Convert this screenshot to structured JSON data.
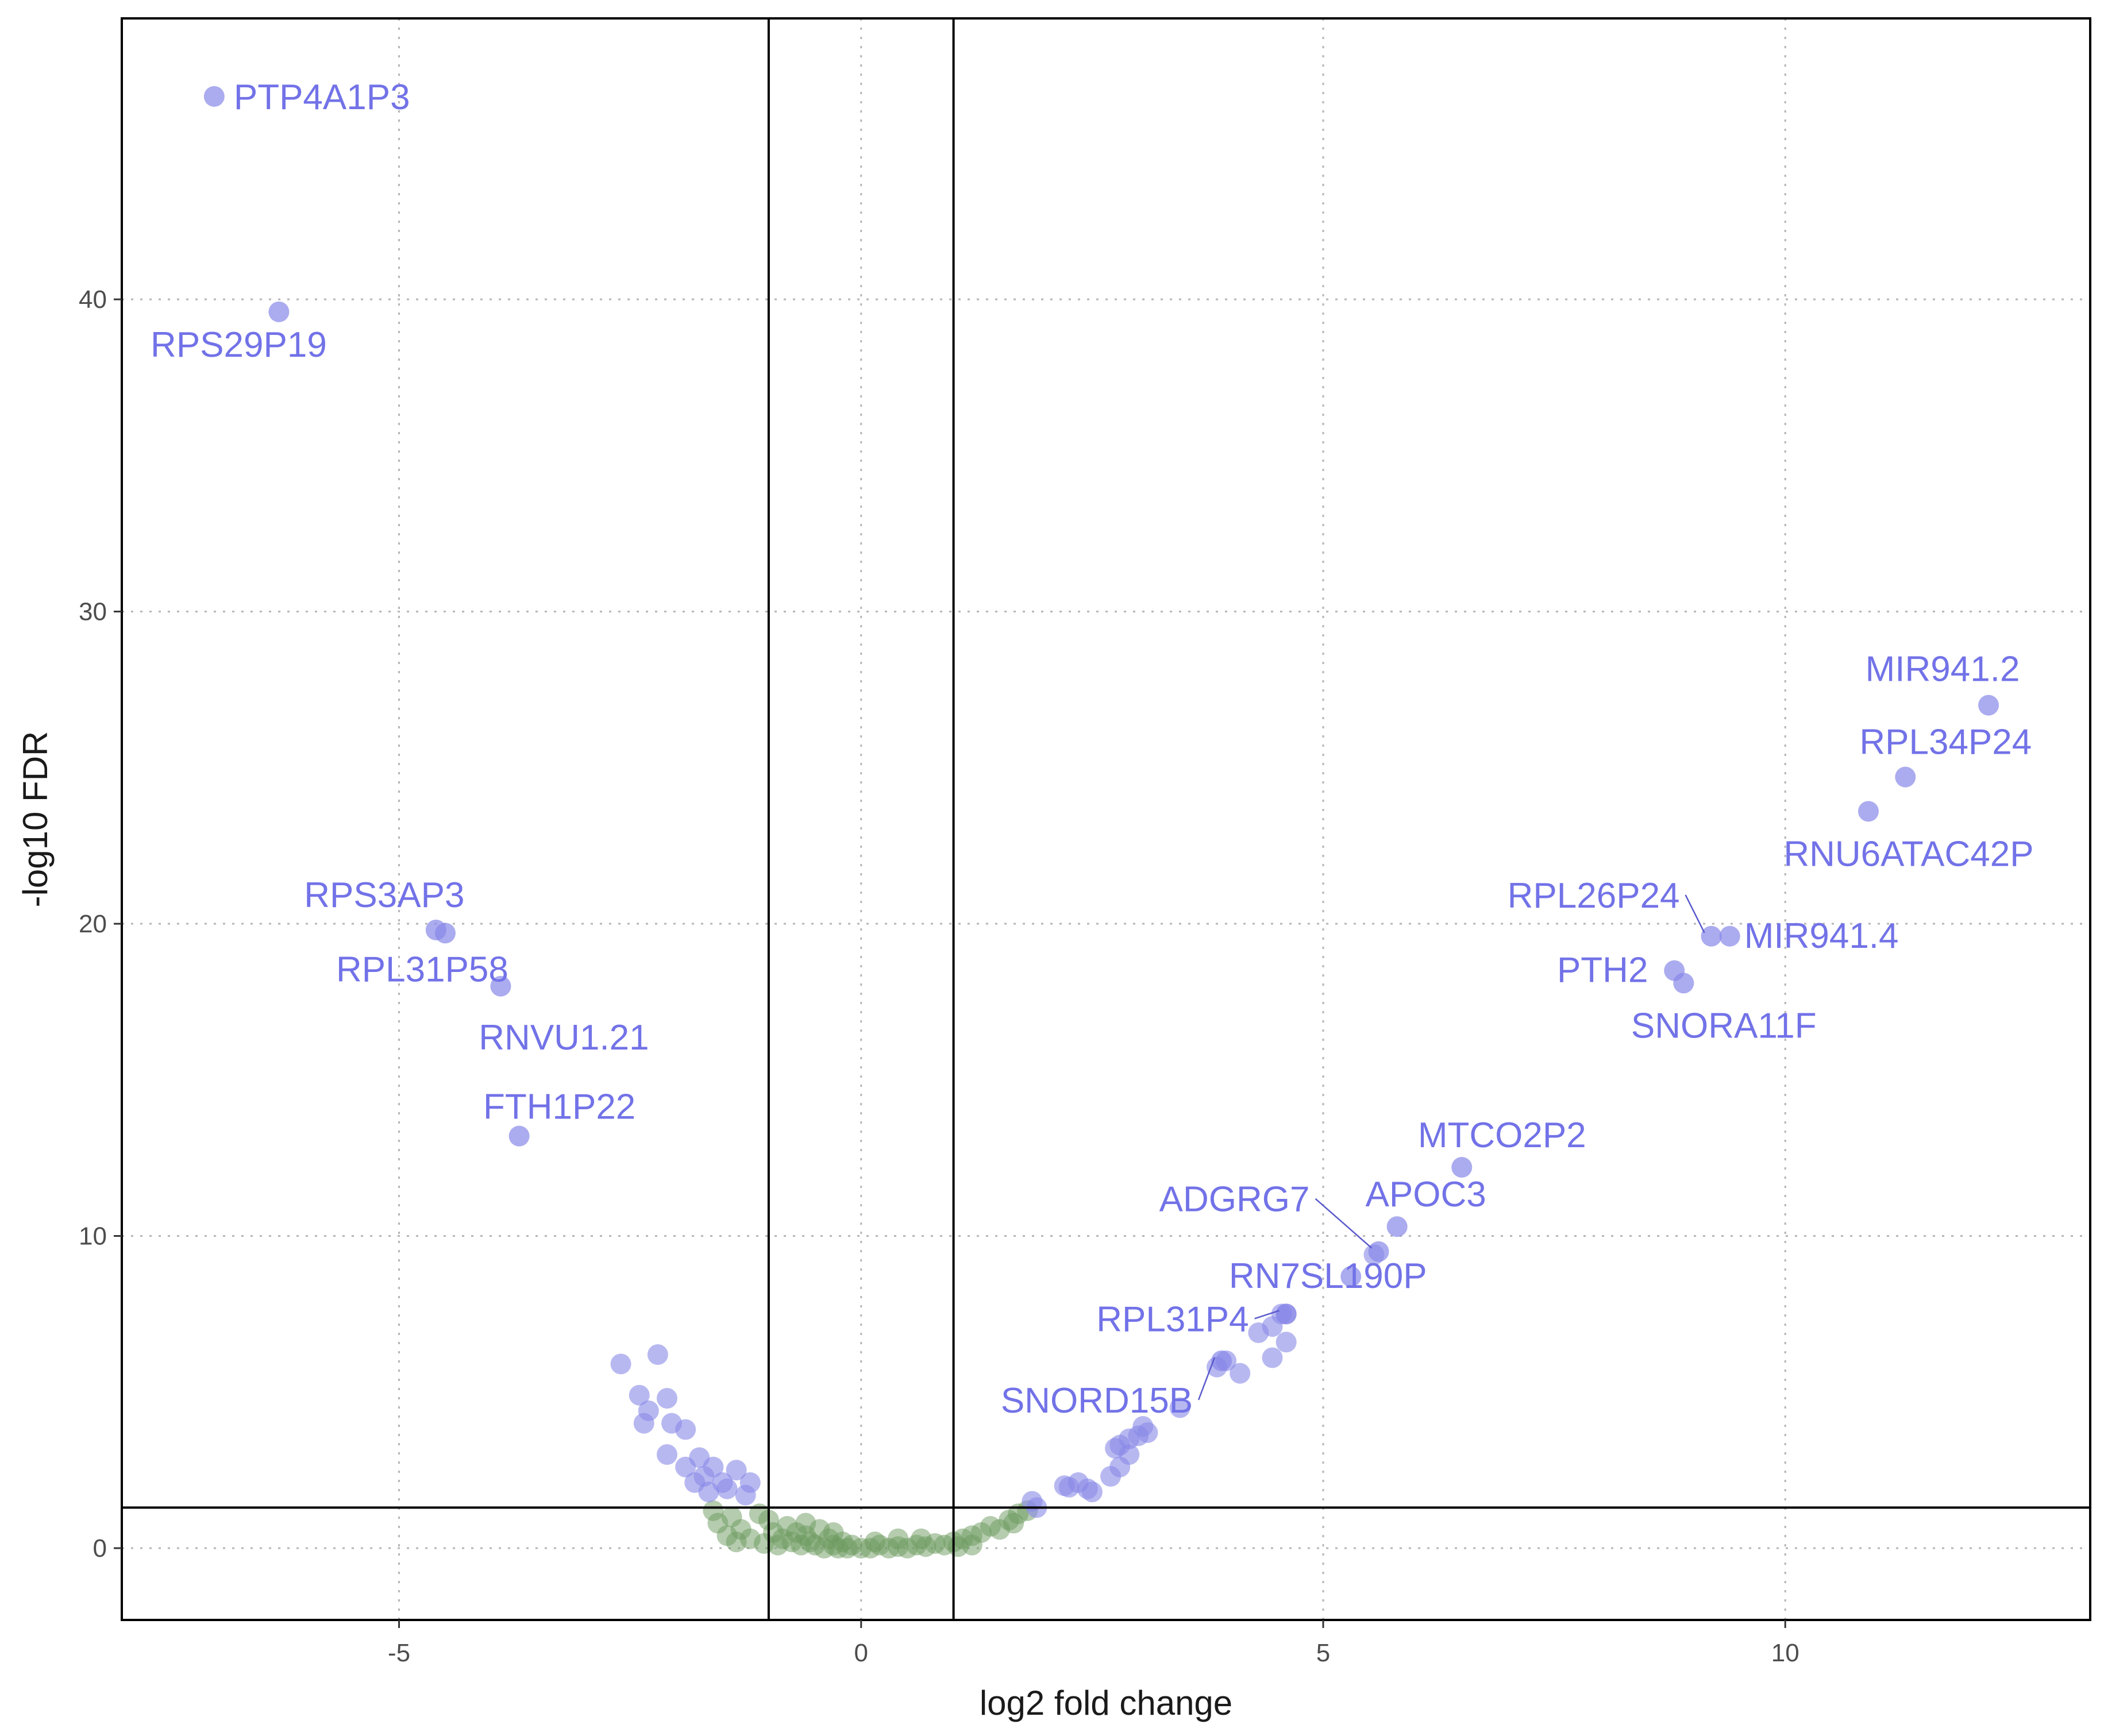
{
  "chart_data": {
    "type": "scatter",
    "title": "",
    "xlabel": "log2 fold change",
    "ylabel": "-log10 FDR",
    "xlim": [
      -8,
      13.3
    ],
    "ylim": [
      -2.3,
      49
    ],
    "x_ticks": [
      -5,
      0,
      5,
      10
    ],
    "y_ticks": [
      0,
      10,
      20,
      30,
      40
    ],
    "x_tick_labels": [
      "-5",
      "0",
      "5",
      "10"
    ],
    "y_tick_labels": [
      "0",
      "10",
      "20",
      "30",
      "40"
    ],
    "grid": true,
    "grid_style": "dotted",
    "threshold_lines": {
      "x": [
        -1,
        1
      ],
      "y": [
        1.3
      ]
    },
    "colors": {
      "significant": "#8888e8",
      "not_significant": "#6b9a5e",
      "label": "#7272e8",
      "leader_line": "#5a5acc"
    },
    "labeled_genes": [
      {
        "gene": "PTP4A1P3",
        "x": -7.0,
        "y": 46.5
      },
      {
        "gene": "RPS29P19",
        "x": -6.3,
        "y": 39.6
      },
      {
        "gene": "RPS3AP3",
        "x": -4.6,
        "y": 19.8
      },
      {
        "gene": "RPL31P58",
        "x": -4.5,
        "y": 19.7
      },
      {
        "gene": "RNVU1.21",
        "x": -3.9,
        "y": 18.0
      },
      {
        "gene": "FTH1P22",
        "x": -3.7,
        "y": 13.2
      },
      {
        "gene": "MIR941.2",
        "x": 12.2,
        "y": 27.0
      },
      {
        "gene": "RPL34P24",
        "x": 11.3,
        "y": 24.7
      },
      {
        "gene": "RNU6ATAC42P",
        "x": 10.9,
        "y": 23.6
      },
      {
        "gene": "RPL26P24",
        "x": 9.2,
        "y": 19.6
      },
      {
        "gene": "MIR941.4",
        "x": 9.4,
        "y": 19.6
      },
      {
        "gene": "PTH2",
        "x": 8.8,
        "y": 18.5
      },
      {
        "gene": "SNORA11F",
        "x": 8.9,
        "y": 18.1
      },
      {
        "gene": "MTCO2P2",
        "x": 6.5,
        "y": 12.2
      },
      {
        "gene": "APOC3",
        "x": 5.8,
        "y": 10.3
      },
      {
        "gene": "ADGRG7",
        "x": 5.6,
        "y": 9.5
      },
      {
        "gene": "RN7SL190P",
        "x": 5.3,
        "y": 8.7
      },
      {
        "gene": "RPL31P4",
        "x": 4.6,
        "y": 7.5
      },
      {
        "gene": "SNORD15B",
        "x": 3.9,
        "y": 6.0
      }
    ],
    "significant_points": [
      [
        -2.6,
        5.9
      ],
      [
        -2.2,
        6.2
      ],
      [
        -2.4,
        4.9
      ],
      [
        -2.1,
        4.8
      ],
      [
        -2.3,
        4.4
      ],
      [
        -2.35,
        4.0
      ],
      [
        -2.05,
        4.0
      ],
      [
        -1.9,
        3.8
      ],
      [
        -2.1,
        3.0
      ],
      [
        -1.75,
        2.9
      ],
      [
        -1.9,
        2.6
      ],
      [
        -1.6,
        2.6
      ],
      [
        -1.35,
        2.5
      ],
      [
        -1.7,
        2.3
      ],
      [
        -1.8,
        2.1
      ],
      [
        -1.5,
        2.1
      ],
      [
        -1.2,
        2.1
      ],
      [
        -1.45,
        1.9
      ],
      [
        -1.65,
        1.8
      ],
      [
        -1.25,
        1.7
      ],
      [
        1.85,
        1.5
      ],
      [
        1.9,
        1.3
      ],
      [
        2.2,
        2.0
      ],
      [
        2.35,
        2.1
      ],
      [
        2.45,
        1.9
      ],
      [
        2.5,
        1.8
      ],
      [
        2.25,
        1.95
      ],
      [
        2.7,
        2.3
      ],
      [
        2.8,
        2.6
      ],
      [
        2.9,
        3.0
      ],
      [
        2.75,
        3.2
      ],
      [
        2.9,
        3.5
      ],
      [
        3.0,
        3.6
      ],
      [
        2.8,
        3.3
      ],
      [
        3.05,
        3.9
      ],
      [
        3.1,
        3.7
      ],
      [
        3.45,
        4.5
      ],
      [
        3.85,
        5.8
      ],
      [
        3.95,
        6.0
      ],
      [
        4.1,
        5.6
      ],
      [
        4.3,
        6.9
      ],
      [
        4.45,
        7.1
      ],
      [
        4.55,
        7.5
      ],
      [
        4.6,
        7.5
      ],
      [
        4.6,
        6.6
      ],
      [
        4.45,
        6.1
      ],
      [
        5.55,
        9.4
      ]
    ],
    "nonsignificant_points": [
      [
        -1.6,
        1.2
      ],
      [
        -1.4,
        1.0
      ],
      [
        -1.55,
        0.8
      ],
      [
        -1.3,
        0.6
      ],
      [
        -1.45,
        0.4
      ],
      [
        -1.2,
        0.3
      ],
      [
        -1.35,
        0.2
      ],
      [
        -1.1,
        1.1
      ],
      [
        -1.0,
        0.9
      ],
      [
        -0.95,
        0.5
      ],
      [
        -0.85,
        0.3
      ],
      [
        -0.9,
        0.1
      ],
      [
        -0.8,
        0.7
      ],
      [
        -0.75,
        0.2
      ],
      [
        -0.7,
        0.5
      ],
      [
        -0.65,
        0.1
      ],
      [
        -0.6,
        0.4
      ],
      [
        -0.55,
        0.2
      ],
      [
        -0.5,
        0.1
      ],
      [
        -0.45,
        0.6
      ],
      [
        -0.4,
        0.0
      ],
      [
        -0.35,
        0.3
      ],
      [
        -0.3,
        0.1
      ],
      [
        -0.25,
        0.0
      ],
      [
        -0.2,
        0.2
      ],
      [
        -0.15,
        0.0
      ],
      [
        -0.1,
        0.1
      ],
      [
        0.0,
        0.0
      ],
      [
        0.1,
        0.0
      ],
      [
        0.2,
        0.1
      ],
      [
        0.3,
        0.0
      ],
      [
        0.4,
        0.05
      ],
      [
        0.5,
        0.0
      ],
      [
        0.6,
        0.1
      ],
      [
        0.7,
        0.05
      ],
      [
        0.8,
        0.15
      ],
      [
        0.9,
        0.1
      ],
      [
        1.0,
        0.2
      ],
      [
        1.1,
        0.3
      ],
      [
        1.2,
        0.4
      ],
      [
        1.3,
        0.5
      ],
      [
        1.4,
        0.7
      ],
      [
        1.5,
        0.6
      ],
      [
        1.6,
        0.9
      ],
      [
        1.7,
        1.1
      ],
      [
        1.8,
        1.2
      ],
      [
        1.65,
        0.8
      ],
      [
        -0.6,
        0.8
      ],
      [
        0.4,
        0.3
      ],
      [
        -0.3,
        0.5
      ],
      [
        0.15,
        0.2
      ],
      [
        1.2,
        0.1
      ],
      [
        1.05,
        0.05
      ],
      [
        0.65,
        0.3
      ],
      [
        -1.05,
        0.15
      ]
    ]
  }
}
